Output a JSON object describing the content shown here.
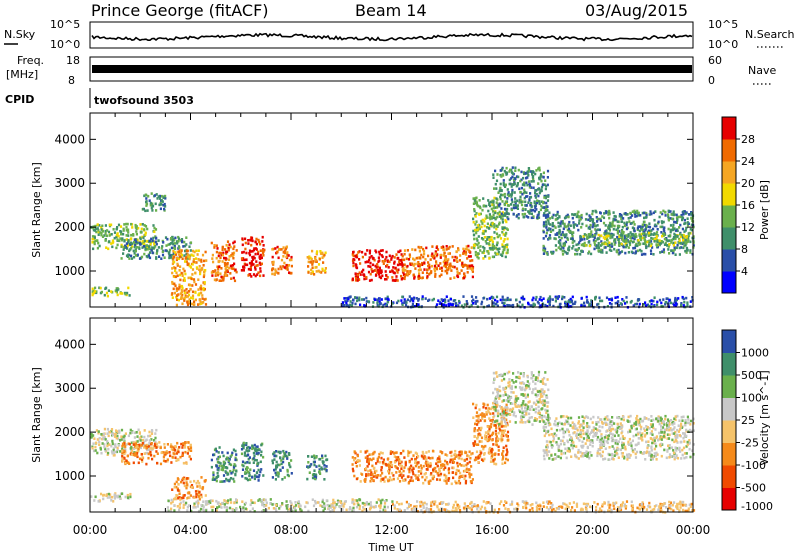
{
  "header": {
    "station": "Prince George (fitACF)",
    "beam": "Beam 14",
    "date": "03/Aug/2015"
  },
  "top_panels": {
    "nsky_label": "N.Sky",
    "nsearch_label": "N.Search",
    "noise_ticks": [
      "10^5",
      "10^0"
    ],
    "freq_label": "Freq.",
    "freq_unit": "[MHz]",
    "freq_ticks": [
      "18",
      "8"
    ],
    "nave_label": "Nave",
    "nave_ticks": [
      "60",
      "0"
    ],
    "cpid_label": "CPID",
    "cpid_value": "twofsound 3503"
  },
  "colors": {
    "power_scale": [
      "#0000ff",
      "#2a4fa8",
      "#3f8f6a",
      "#6ab04c",
      "#f2d900",
      "#f5a623",
      "#f06a00",
      "#e60000"
    ],
    "velocity_scale": [
      "#e60000",
      "#f04a00",
      "#f58a1a",
      "#f5c36a",
      "#c8c8c8",
      "#6ab04c",
      "#3f8f6a",
      "#2a4fa8"
    ]
  },
  "chart_data": [
    {
      "type": "heatmap",
      "panel": "power",
      "ylabel": "Slant Range [km]",
      "yticks": [
        1000,
        2000,
        3000,
        4000
      ],
      "ylim": [
        180,
        4600
      ],
      "xlim": [
        0,
        24
      ],
      "colorbar_label": "Power [dB]",
      "colorbar_ticks": [
        "28",
        "24",
        "20",
        "16",
        "12",
        "8",
        "4"
      ],
      "patches": [
        {
          "t0": 0.0,
          "t1": 2.6,
          "r0": 1500,
          "r1": 2100,
          "value": 14
        },
        {
          "t0": 0.0,
          "t1": 1.6,
          "r0": 450,
          "r1": 650,
          "value": 12
        },
        {
          "t0": 1.2,
          "t1": 4.0,
          "r0": 1300,
          "r1": 1800,
          "value": 11
        },
        {
          "t0": 3.2,
          "t1": 4.6,
          "r0": 250,
          "r1": 1500,
          "value": 22
        },
        {
          "t0": 4.8,
          "t1": 5.8,
          "r0": 800,
          "r1": 1700,
          "value": 27
        },
        {
          "t0": 6.0,
          "t1": 6.9,
          "r0": 900,
          "r1": 1800,
          "value": 28
        },
        {
          "t0": 7.2,
          "t1": 8.0,
          "r0": 950,
          "r1": 1600,
          "value": 25
        },
        {
          "t0": 8.6,
          "t1": 9.4,
          "r0": 950,
          "r1": 1500,
          "value": 22
        },
        {
          "t0": 10.4,
          "t1": 12.4,
          "r0": 800,
          "r1": 1500,
          "value": 29
        },
        {
          "t0": 12.4,
          "t1": 15.2,
          "r0": 850,
          "r1": 1600,
          "value": 24
        },
        {
          "t0": 15.2,
          "t1": 16.6,
          "r0": 1300,
          "r1": 2700,
          "value": 13
        },
        {
          "t0": 16.0,
          "t1": 18.2,
          "r0": 2200,
          "r1": 3400,
          "value": 10
        },
        {
          "t0": 18.0,
          "t1": 24.0,
          "r0": 1400,
          "r1": 2400,
          "value": 11
        },
        {
          "t0": 19.5,
          "t1": 24.0,
          "r0": 1600,
          "r1": 1900,
          "value": 15
        },
        {
          "t0": 2.0,
          "t1": 3.0,
          "r0": 2400,
          "r1": 2800,
          "value": 9
        },
        {
          "t0": 10.0,
          "t1": 24.0,
          "r0": 200,
          "r1": 450,
          "value": 6
        }
      ]
    },
    {
      "type": "heatmap",
      "panel": "velocity",
      "ylabel": "Slant Range [km]",
      "yticks": [
        1000,
        2000,
        3000,
        4000
      ],
      "ylim": [
        180,
        4600
      ],
      "xlim": [
        0,
        24
      ],
      "xlabel": "Time UT",
      "xticks": [
        "00:00",
        "04:00",
        "08:00",
        "12:00",
        "16:00",
        "20:00",
        "00:00"
      ],
      "colorbar_label": "Velocity [m s^-1]",
      "colorbar_ticks": [
        "1000",
        "500",
        "100",
        "25",
        "-25",
        "-100",
        "-500",
        "-1000"
      ],
      "patches": [
        {
          "t0": 0.0,
          "t1": 2.6,
          "r0": 1500,
          "r1": 2100,
          "value": 0
        },
        {
          "t0": 0.0,
          "t1": 1.6,
          "r0": 450,
          "r1": 650,
          "value": 0
        },
        {
          "t0": 1.2,
          "t1": 4.0,
          "r0": 1300,
          "r1": 1800,
          "value": -150
        },
        {
          "t0": 3.2,
          "t1": 4.6,
          "r0": 500,
          "r1": 1000,
          "value": -200
        },
        {
          "t0": 4.8,
          "t1": 5.8,
          "r0": 900,
          "r1": 1700,
          "value": 150
        },
        {
          "t0": 6.0,
          "t1": 6.9,
          "r0": 900,
          "r1": 1800,
          "value": 200
        },
        {
          "t0": 7.2,
          "t1": 8.0,
          "r0": 950,
          "r1": 1600,
          "value": 400
        },
        {
          "t0": 8.6,
          "t1": 9.4,
          "r0": 950,
          "r1": 1500,
          "value": 500
        },
        {
          "t0": 10.4,
          "t1": 12.4,
          "r0": 900,
          "r1": 1600,
          "value": -300
        },
        {
          "t0": 12.4,
          "t1": 15.2,
          "r0": 850,
          "r1": 1600,
          "value": -250
        },
        {
          "t0": 15.2,
          "t1": 16.6,
          "r0": 1300,
          "r1": 2700,
          "value": -400
        },
        {
          "t0": 16.0,
          "t1": 18.2,
          "r0": 2200,
          "r1": 3400,
          "value": 0
        },
        {
          "t0": 18.0,
          "t1": 24.0,
          "r0": 1400,
          "r1": 2400,
          "value": 0
        },
        {
          "t0": 3.0,
          "t1": 12.0,
          "r0": 220,
          "r1": 500,
          "value": -20
        },
        {
          "t0": 12.0,
          "t1": 24.0,
          "r0": 200,
          "r1": 450,
          "value": -60
        }
      ]
    }
  ]
}
